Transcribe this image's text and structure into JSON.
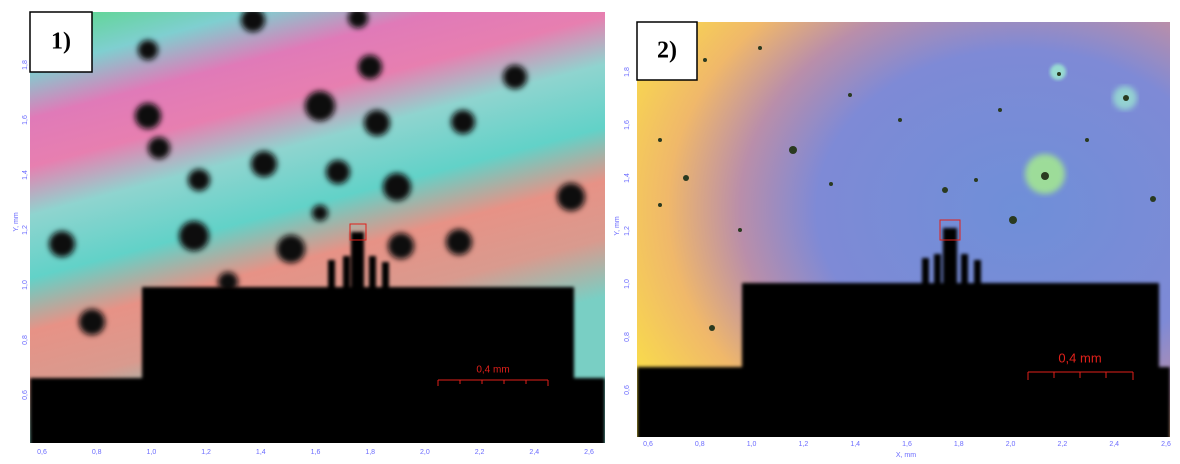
{
  "panels": [
    {
      "label": "1)",
      "scale_bar": "0,4 mm",
      "y_axis_label": "Y, mm",
      "x_ticks": [
        "0,6",
        "0,8",
        "1,0",
        "1,2",
        "1,4",
        "1,6",
        "1,8",
        "2,0",
        "2,2",
        "2,4",
        "2,6"
      ],
      "y_ticks": [
        "1,8",
        "1,6",
        "1,4",
        "1,2",
        "1,0",
        "0,8",
        "0,6"
      ]
    },
    {
      "label": "2)",
      "scale_bar": "0,4 mm",
      "y_axis_label": "Y, mm",
      "x_axis_label": "X, mm",
      "x_ticks": [
        "0,6",
        "0,8",
        "1,0",
        "1,2",
        "1,4",
        "1,6",
        "1,8",
        "2,0",
        "2,2",
        "2,4",
        "2,6"
      ],
      "y_ticks": [
        "1,8",
        "1,6",
        "1,4",
        "1,2",
        "1,0",
        "0,8",
        "0,6"
      ]
    }
  ]
}
